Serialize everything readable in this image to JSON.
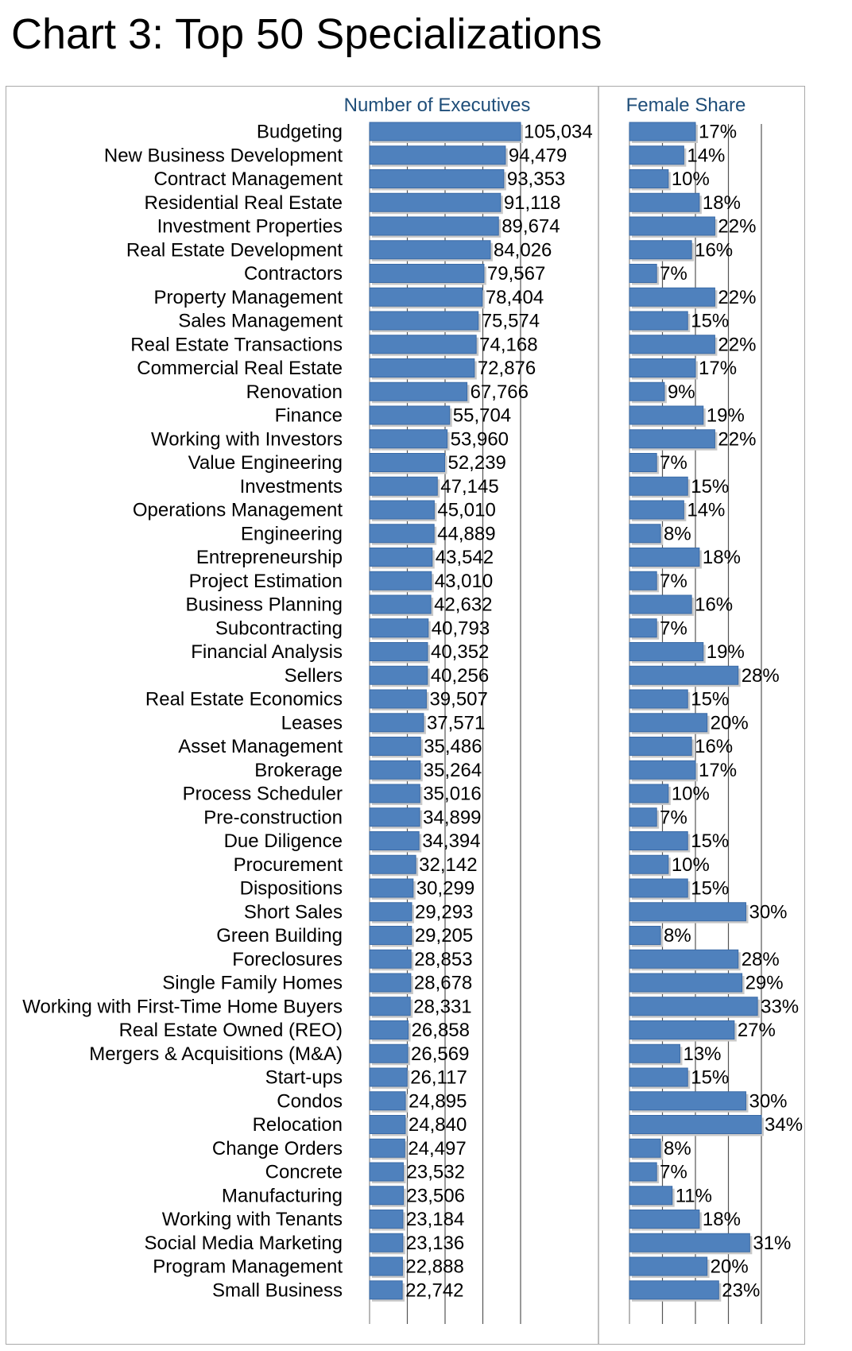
{
  "title": "Chart 3: Top 50 Specializations",
  "colors": {
    "bar": "#4f81bd",
    "bar_edge": "#3a6aa6",
    "header": "#1f4e79",
    "grid": "#555555",
    "border": "#a9a9a9"
  },
  "chart_data": [
    {
      "type": "bar",
      "orientation": "horizontal",
      "title": "Number of Executives",
      "xlim": [
        0,
        105034
      ],
      "grid": true,
      "categories": [
        "Budgeting",
        "New Business Development",
        "Contract Management",
        "Residential Real Estate",
        "Investment Properties",
        "Real Estate Development",
        "Contractors",
        "Property Management",
        "Sales Management",
        "Real Estate Transactions",
        "Commercial Real Estate",
        "Renovation",
        "Finance",
        "Working with Investors",
        "Value Engineering",
        "Investments",
        "Operations Management",
        "Engineering",
        "Entrepreneurship",
        "Project Estimation",
        "Business Planning",
        "Subcontracting",
        "Financial Analysis",
        "Sellers",
        "Real Estate Economics",
        "Leases",
        "Asset Management",
        "Brokerage",
        "Process Scheduler",
        "Pre-construction",
        "Due Diligence",
        "Procurement",
        "Dispositions",
        "Short Sales",
        "Green Building",
        "Foreclosures",
        "Single Family Homes",
        "Working with First-Time Home Buyers",
        "Real Estate Owned (REO)",
        "Mergers & Acquisitions (M&A)",
        "Start-ups",
        "Condos",
        "Relocation",
        "Change Orders",
        "Concrete",
        "Manufacturing",
        "Working with Tenants",
        "Social Media Marketing",
        "Program Management",
        "Small Business"
      ],
      "values": [
        105034,
        94479,
        93353,
        91118,
        89674,
        84026,
        79567,
        78404,
        75574,
        74168,
        72876,
        67766,
        55704,
        53960,
        52239,
        47145,
        45010,
        44889,
        43542,
        43010,
        42632,
        40793,
        40352,
        40256,
        39507,
        37571,
        35486,
        35264,
        35016,
        34899,
        34394,
        32142,
        30299,
        29293,
        29205,
        28853,
        28678,
        28331,
        26858,
        26569,
        26117,
        24895,
        24840,
        24497,
        23532,
        23506,
        23184,
        23136,
        22888,
        22742
      ],
      "value_labels": [
        "105,034",
        "94,479",
        "93,353",
        "91,118",
        "89,674",
        "84,026",
        "79,567",
        "78,404",
        "75,574",
        "74,168",
        "72,876",
        "67,766",
        "55,704",
        "53,960",
        "52,239",
        "47,145",
        "45,010",
        "44,889",
        "43,542",
        "43,010",
        "42,632",
        "40,793",
        "40,352",
        "40,256",
        "39,507",
        "37,571",
        "35,486",
        "35,264",
        "35,016",
        "34,899",
        "34,394",
        "32,142",
        "30,299",
        "29,293",
        "29,205",
        "28,853",
        "28,678",
        "28,331",
        "26,858",
        "26,569",
        "26,117",
        "24,895",
        "24,840",
        "24,497",
        "23,532",
        "23,506",
        "23,184",
        "23,136",
        "22,888",
        "22,742"
      ]
    },
    {
      "type": "bar",
      "orientation": "horizontal",
      "title": "Female Share",
      "unit": "%",
      "xlim": [
        0,
        34
      ],
      "grid": true,
      "values": [
        17,
        14,
        10,
        18,
        22,
        16,
        7,
        22,
        15,
        22,
        17,
        9,
        19,
        22,
        7,
        15,
        14,
        8,
        18,
        7,
        16,
        7,
        19,
        28,
        15,
        20,
        16,
        17,
        10,
        7,
        15,
        10,
        15,
        30,
        8,
        28,
        29,
        33,
        27,
        13,
        15,
        30,
        34,
        8,
        7,
        11,
        18,
        31,
        20,
        23
      ],
      "value_labels": [
        "17%",
        "14%",
        "10%",
        "18%",
        "22%",
        "16%",
        "7%",
        "22%",
        "15%",
        "22%",
        "17%",
        "9%",
        "19%",
        "22%",
        "7%",
        "15%",
        "14%",
        "8%",
        "18%",
        "7%",
        "16%",
        "7%",
        "19%",
        "28%",
        "15%",
        "20%",
        "16%",
        "17%",
        "10%",
        "7%",
        "15%",
        "10%",
        "15%",
        "30%",
        "8%",
        "28%",
        "29%",
        "33%",
        "27%",
        "13%",
        "15%",
        "30%",
        "34%",
        "8%",
        "7%",
        "11%",
        "18%",
        "31%",
        "20%",
        "23%"
      ]
    }
  ]
}
